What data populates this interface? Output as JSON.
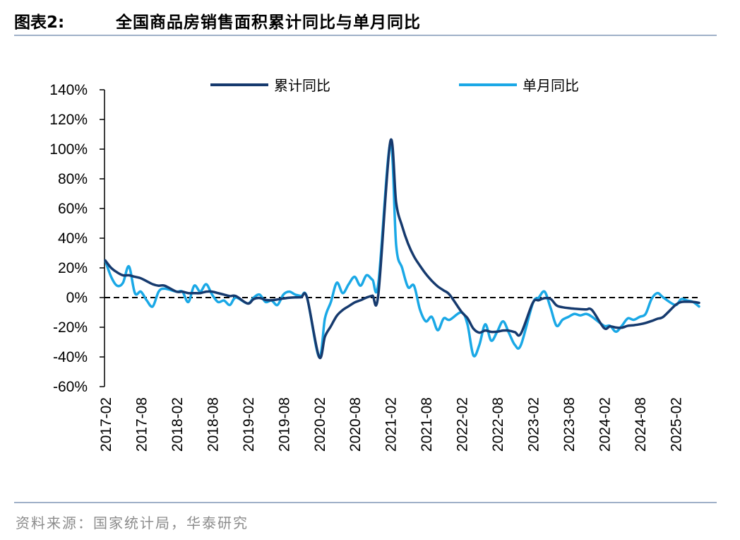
{
  "header": {
    "figure_no": "图表2:",
    "title": "全国商品房销售面积累计同比与单月同比"
  },
  "source": "资料来源：国家统计局，华泰研究",
  "colors": {
    "cumulative": "#163a6e",
    "monthly": "#1aa8e6",
    "rule": "#9fb0c8"
  },
  "chart_data": {
    "type": "line",
    "title": "全国商品房销售面积累计同比与单月同比",
    "xlabel": "",
    "ylabel": "",
    "ylim": [
      -60,
      140
    ],
    "yticks": [
      "-60%",
      "-40%",
      "-20%",
      "0%",
      "20%",
      "40%",
      "60%",
      "80%",
      "100%",
      "120%",
      "140%"
    ],
    "xticks": [
      "2017-02",
      "2017-08",
      "2018-02",
      "2018-08",
      "2019-02",
      "2019-08",
      "2020-02",
      "2020-08",
      "2021-02",
      "2021-08",
      "2022-02",
      "2022-08",
      "2023-02",
      "2023-08",
      "2024-02",
      "2024-08",
      "2025-02"
    ],
    "legend_position": "top",
    "reference_line": 0,
    "series": [
      {
        "name": "累计同比",
        "values": [
          [
            "2017-02",
            25
          ],
          [
            "2017-03",
            20
          ],
          [
            "2017-04",
            17
          ],
          [
            "2017-05",
            15
          ],
          [
            "2017-06",
            15
          ],
          [
            "2017-07",
            14
          ],
          [
            "2017-08",
            13
          ],
          [
            "2017-09",
            11
          ],
          [
            "2017-10",
            9
          ],
          [
            "2017-11",
            8
          ],
          [
            "2017-12",
            8
          ],
          [
            "2018-02",
            4
          ],
          [
            "2018-03",
            4
          ],
          [
            "2018-04",
            3
          ],
          [
            "2018-05",
            3
          ],
          [
            "2018-06",
            3
          ],
          [
            "2018-07",
            4
          ],
          [
            "2018-08",
            4
          ],
          [
            "2018-09",
            3
          ],
          [
            "2018-10",
            2
          ],
          [
            "2018-11",
            1
          ],
          [
            "2018-12",
            1
          ],
          [
            "2019-02",
            -4
          ],
          [
            "2019-03",
            -1
          ],
          [
            "2019-04",
            -0.3
          ],
          [
            "2019-05",
            -1.6
          ],
          [
            "2019-06",
            -1.8
          ],
          [
            "2019-07",
            -1.3
          ],
          [
            "2019-08",
            -0.6
          ],
          [
            "2019-09",
            -0.1
          ],
          [
            "2019-10",
            0.1
          ],
          [
            "2019-11",
            0.2
          ],
          [
            "2019-12",
            -0.1
          ],
          [
            "2020-02",
            -39.9
          ],
          [
            "2020-03",
            -26.3
          ],
          [
            "2020-04",
            -19.3
          ],
          [
            "2020-05",
            -12.3
          ],
          [
            "2020-06",
            -8.4
          ],
          [
            "2020-07",
            -5.8
          ],
          [
            "2020-08",
            -3.3
          ],
          [
            "2020-09",
            -1.8
          ],
          [
            "2020-10",
            0
          ],
          [
            "2020-11",
            1.3
          ],
          [
            "2020-12",
            2.6
          ],
          [
            "2021-02",
            104.9
          ],
          [
            "2021-03",
            63.8
          ],
          [
            "2021-04",
            48.1
          ],
          [
            "2021-05",
            36.3
          ],
          [
            "2021-06",
            27.7
          ],
          [
            "2021-07",
            21.5
          ],
          [
            "2021-08",
            15.9
          ],
          [
            "2021-09",
            11.3
          ],
          [
            "2021-10",
            7.5
          ],
          [
            "2021-11",
            4.8
          ],
          [
            "2021-12",
            1.9
          ],
          [
            "2022-02",
            -9.6
          ],
          [
            "2022-03",
            -13.8
          ],
          [
            "2022-04",
            -20.9
          ],
          [
            "2022-05",
            -23.6
          ],
          [
            "2022-06",
            -22.2
          ],
          [
            "2022-07",
            -23.1
          ],
          [
            "2022-08",
            -23
          ],
          [
            "2022-09",
            -22.2
          ],
          [
            "2022-10",
            -22.3
          ],
          [
            "2022-11",
            -23.3
          ],
          [
            "2022-12",
            -24.3
          ],
          [
            "2023-02",
            -3.6
          ],
          [
            "2023-03",
            -1.8
          ],
          [
            "2023-04",
            -0.4
          ],
          [
            "2023-05",
            -0.9
          ],
          [
            "2023-06",
            -5.3
          ],
          [
            "2023-07",
            -6.5
          ],
          [
            "2023-08",
            -7.1
          ],
          [
            "2023-09",
            -7.5
          ],
          [
            "2023-10",
            -7.8
          ],
          [
            "2023-11",
            -8
          ],
          [
            "2023-12",
            -8.5
          ],
          [
            "2024-02",
            -20.5
          ],
          [
            "2024-03",
            -19.4
          ],
          [
            "2024-04",
            -20.2
          ],
          [
            "2024-05",
            -20.3
          ],
          [
            "2024-06",
            -19
          ],
          [
            "2024-07",
            -18.6
          ],
          [
            "2024-08",
            -18
          ],
          [
            "2024-09",
            -17.1
          ],
          [
            "2024-10",
            -15.8
          ],
          [
            "2024-11",
            -14.3
          ],
          [
            "2024-12",
            -12.9
          ],
          [
            "2025-02",
            -5.1
          ],
          [
            "2025-03",
            -3
          ],
          [
            "2025-04",
            -2.8
          ],
          [
            "2025-05",
            -2.9
          ],
          [
            "2025-06",
            -3.5
          ]
        ]
      },
      {
        "name": "单月同比",
        "values": [
          [
            "2017-02",
            25
          ],
          [
            "2017-03",
            14
          ],
          [
            "2017-04",
            8
          ],
          [
            "2017-05",
            10
          ],
          [
            "2017-06",
            21
          ],
          [
            "2017-07",
            3
          ],
          [
            "2017-08",
            4
          ],
          [
            "2017-09",
            -2
          ],
          [
            "2017-10",
            -6
          ],
          [
            "2017-11",
            4
          ],
          [
            "2017-12",
            6
          ],
          [
            "2018-02",
            4
          ],
          [
            "2018-03",
            4
          ],
          [
            "2018-04",
            -3
          ],
          [
            "2018-05",
            8
          ],
          [
            "2018-06",
            4
          ],
          [
            "2018-07",
            9
          ],
          [
            "2018-08",
            2
          ],
          [
            "2018-09",
            -3
          ],
          [
            "2018-10",
            -2
          ],
          [
            "2018-11",
            -5
          ],
          [
            "2018-12",
            0
          ],
          [
            "2019-02",
            -4
          ],
          [
            "2019-03",
            0
          ],
          [
            "2019-04",
            2
          ],
          [
            "2019-05",
            -3
          ],
          [
            "2019-06",
            -2
          ],
          [
            "2019-07",
            -5
          ],
          [
            "2019-08",
            2
          ],
          [
            "2019-09",
            4
          ],
          [
            "2019-10",
            2
          ],
          [
            "2019-11",
            1
          ],
          [
            "2019-12",
            0
          ],
          [
            "2020-02",
            -40
          ],
          [
            "2020-03",
            -14
          ],
          [
            "2020-04",
            -3
          ],
          [
            "2020-05",
            10
          ],
          [
            "2020-06",
            3
          ],
          [
            "2020-07",
            9
          ],
          [
            "2020-08",
            14
          ],
          [
            "2020-09",
            8
          ],
          [
            "2020-10",
            15
          ],
          [
            "2020-11",
            12
          ],
          [
            "2020-12",
            10
          ],
          [
            "2021-02",
            104
          ],
          [
            "2021-03",
            35
          ],
          [
            "2021-04",
            20
          ],
          [
            "2021-05",
            7
          ],
          [
            "2021-06",
            8
          ],
          [
            "2021-07",
            -8
          ],
          [
            "2021-08",
            -16
          ],
          [
            "2021-09",
            -13
          ],
          [
            "2021-10",
            -22
          ],
          [
            "2021-11",
            -14
          ],
          [
            "2021-12",
            -15
          ],
          [
            "2022-02",
            -10
          ],
          [
            "2022-03",
            -18
          ],
          [
            "2022-04",
            -39
          ],
          [
            "2022-05",
            -32
          ],
          [
            "2022-06",
            -18
          ],
          [
            "2022-07",
            -29
          ],
          [
            "2022-08",
            -23
          ],
          [
            "2022-09",
            -16
          ],
          [
            "2022-10",
            -24
          ],
          [
            "2022-11",
            -32
          ],
          [
            "2022-12",
            -32
          ],
          [
            "2023-02",
            -4
          ],
          [
            "2023-03",
            0
          ],
          [
            "2023-04",
            4
          ],
          [
            "2023-05",
            -7
          ],
          [
            "2023-06",
            -19
          ],
          [
            "2023-07",
            -15
          ],
          [
            "2023-08",
            -13
          ],
          [
            "2023-09",
            -11
          ],
          [
            "2023-10",
            -12
          ],
          [
            "2023-11",
            -11
          ],
          [
            "2023-12",
            -13
          ],
          [
            "2024-02",
            -19
          ],
          [
            "2024-03",
            -19
          ],
          [
            "2024-04",
            -23
          ],
          [
            "2024-05",
            -19
          ],
          [
            "2024-06",
            -14
          ],
          [
            "2024-07",
            -15
          ],
          [
            "2024-08",
            -13
          ],
          [
            "2024-09",
            -11
          ],
          [
            "2024-10",
            -1
          ],
          [
            "2024-11",
            3
          ],
          [
            "2024-12",
            0
          ],
          [
            "2025-02",
            -5
          ],
          [
            "2025-03",
            -1
          ],
          [
            "2025-04",
            -2
          ],
          [
            "2025-05",
            -3
          ],
          [
            "2025-06",
            -6
          ]
        ]
      }
    ]
  }
}
